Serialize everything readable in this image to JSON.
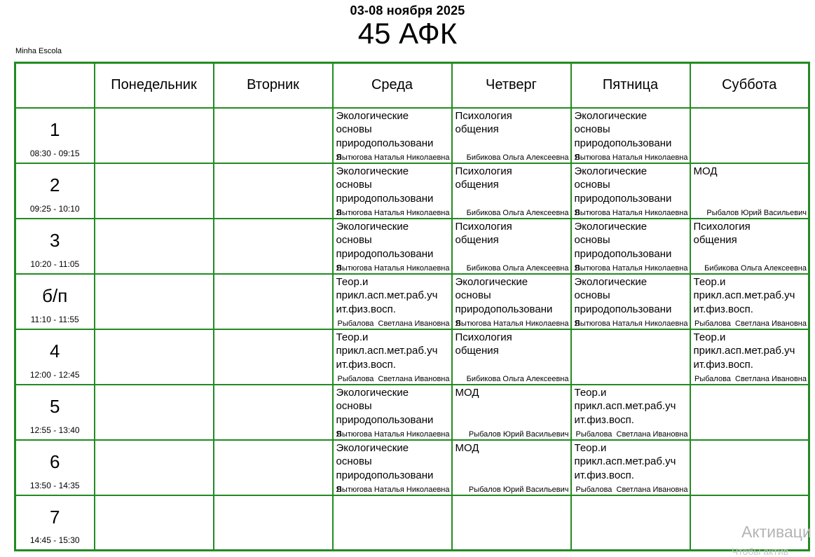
{
  "header": {
    "date_range": "03-08 ноября 2025",
    "title": "45 АФК",
    "school_label": "Minha Escola"
  },
  "colors": {
    "grid_border": "#228B22",
    "watermark": "#b4b4b4"
  },
  "watermark": {
    "line1": "Активаци",
    "line2": "Чтобы актив"
  },
  "timetable": {
    "days": [
      "Понедельник",
      "Вторник",
      "Среда",
      "Четверг",
      "Пятница",
      "Суббота"
    ],
    "periods": [
      {
        "label": "1",
        "time": "08:30 - 09:15"
      },
      {
        "label": "2",
        "time": "09:25 - 10:10"
      },
      {
        "label": "3",
        "time": "10:20 - 11:05"
      },
      {
        "label": "б/п",
        "time": "11:10 - 11:55"
      },
      {
        "label": "4",
        "time": "12:00 - 12:45"
      },
      {
        "label": "5",
        "time": "12:55 - 13:40"
      },
      {
        "label": "6",
        "time": "13:50 - 14:35"
      },
      {
        "label": "7",
        "time": "14:45 - 15:30"
      }
    ],
    "lessons": [
      [
        null,
        null,
        {
          "subject": "Экологические основы природопользования",
          "teacher": "Вытюгова Наталья Николаевна"
        },
        {
          "subject": "Психология общения",
          "teacher": "Бибикова Ольга Алексеевна"
        },
        {
          "subject": "Экологические основы природопользования",
          "teacher": "Вытюгова Наталья Николаевна"
        },
        null
      ],
      [
        null,
        null,
        {
          "subject": "Экологические основы природопользования",
          "teacher": "Вытюгова Наталья Николаевна"
        },
        {
          "subject": "Психология общения",
          "teacher": "Бибикова Ольга Алексеевна"
        },
        {
          "subject": "Экологические основы природопользования",
          "teacher": "Вытюгова Наталья Николаевна"
        },
        {
          "subject": "МОД",
          "teacher": "Рыбалов Юрий Васильевич"
        }
      ],
      [
        null,
        null,
        {
          "subject": "Экологические основы природопользования",
          "teacher": "Вытюгова Наталья Николаевна"
        },
        {
          "subject": "Психология общения",
          "teacher": "Бибикова Ольга Алексеевна"
        },
        {
          "subject": "Экологические основы природопользования",
          "teacher": "Вытюгова Наталья Николаевна"
        },
        {
          "subject": "Психология общения",
          "teacher": "Бибикова Ольга Алексеевна"
        }
      ],
      [
        null,
        null,
        {
          "subject": "Теор.и прикл.асп.мет.раб.учит.физ.восп.",
          "teacher": "Рыбалова  Светлана Ивановна"
        },
        {
          "subject": "Экологические основы природопользования",
          "teacher": "Вытюгова Наталья Николаевна"
        },
        {
          "subject": "Экологические основы природопользования",
          "teacher": "Вытюгова Наталья Николаевна"
        },
        {
          "subject": "Теор.и прикл.асп.мет.раб.учит.физ.восп.",
          "teacher": "Рыбалова  Светлана Ивановна"
        }
      ],
      [
        null,
        null,
        {
          "subject": "Теор.и прикл.асп.мет.раб.учит.физ.восп.",
          "teacher": "Рыбалова  Светлана Ивановна"
        },
        {
          "subject": "Психология общения",
          "teacher": "Бибикова Ольга Алексеевна"
        },
        null,
        {
          "subject": "Теор.и прикл.асп.мет.раб.учит.физ.восп.",
          "teacher": "Рыбалова  Светлана Ивановна"
        }
      ],
      [
        null,
        null,
        {
          "subject": "Экологические основы природопользования",
          "teacher": "Вытюгова Наталья Николаевна"
        },
        {
          "subject": "МОД",
          "teacher": "Рыбалов Юрий Васильевич"
        },
        {
          "subject": "Теор.и прикл.асп.мет.раб.учит.физ.восп.",
          "teacher": "Рыбалова  Светлана Ивановна"
        },
        null
      ],
      [
        null,
        null,
        {
          "subject": "Экологические основы природопользования",
          "teacher": "Вытюгова Наталья Николаевна"
        },
        {
          "subject": "МОД",
          "teacher": "Рыбалов Юрий Васильевич"
        },
        {
          "subject": "Теор.и прикл.асп.мет.раб.учит.физ.восп.",
          "teacher": "Рыбалова  Светлана Ивановна"
        },
        null
      ],
      [
        null,
        null,
        null,
        null,
        null,
        null
      ]
    ]
  }
}
